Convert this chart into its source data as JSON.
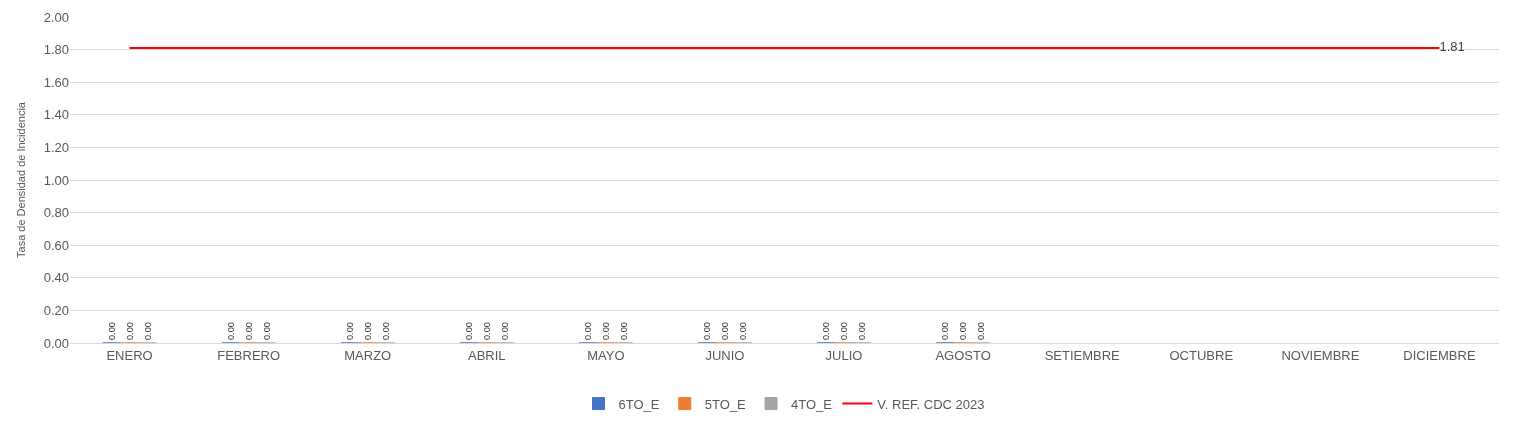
{
  "chart_data": {
    "type": "bar",
    "ylabel": "Tasa de Densidad de Incidencia",
    "categories": [
      "ENERO",
      "FEBRERO",
      "MARZO",
      "ABRIL",
      "MAYO",
      "JUNIO",
      "JULIO",
      "AGOSTO",
      "SETIEMBRE",
      "OCTUBRE",
      "NOVIEMBRE",
      "DICIEMBRE"
    ],
    "series": [
      {
        "name": "6TO_E",
        "color": "#4472c4",
        "values": [
          0,
          0,
          0,
          0,
          0,
          0,
          0,
          0,
          null,
          null,
          null,
          null
        ],
        "value_labels": [
          "0.00",
          "0.00",
          "0.00",
          "0.00",
          "0.00",
          "0.00",
          "0.00",
          "0.00",
          null,
          null,
          null,
          null
        ]
      },
      {
        "name": "5TO_E",
        "color": "#ed7d31",
        "values": [
          0,
          0,
          0,
          0,
          0,
          0,
          0,
          0,
          null,
          null,
          null,
          null
        ],
        "value_labels": [
          "0.00",
          "0.00",
          "0.00",
          "0.00",
          "0.00",
          "0.00",
          "0.00",
          "0.00",
          null,
          null,
          null,
          null
        ]
      },
      {
        "name": "4TO_E",
        "color": "#a5a5a5",
        "values": [
          0,
          0,
          0,
          0,
          0,
          0,
          0,
          0,
          null,
          null,
          null,
          null
        ],
        "value_labels": [
          "0.00",
          "0.00",
          "0.00",
          "0.00",
          "0.00",
          "0.00",
          "0.00",
          "0.00",
          null,
          null,
          null,
          null
        ]
      },
      {
        "name": "V. REF. CDC 2023",
        "type": "line",
        "color": "#ff0000",
        "values": [
          1.81,
          1.81,
          1.81,
          1.81,
          1.81,
          1.81,
          1.81,
          1.81,
          1.81,
          1.81,
          1.81,
          1.81
        ],
        "value_labels": [
          null,
          null,
          null,
          null,
          null,
          null,
          null,
          null,
          null,
          null,
          null,
          "1.81"
        ]
      }
    ],
    "ylim": [
      0,
      2
    ],
    "yticks": [
      {
        "value": 0,
        "label": "0.00"
      },
      {
        "value": 0.2,
        "label": "0.20"
      },
      {
        "value": 0.4,
        "label": "0.40"
      },
      {
        "value": 0.6,
        "label": "0.60"
      },
      {
        "value": 0.8,
        "label": "0.80"
      },
      {
        "value": 1,
        "label": "1.00"
      },
      {
        "value": 1.2,
        "label": "1.20"
      },
      {
        "value": 1.4,
        "label": "1.40"
      },
      {
        "value": 1.6,
        "label": "1.60"
      },
      {
        "value": 1.8,
        "label": "1.80"
      },
      {
        "value": 2,
        "label": "2.00"
      }
    ],
    "grid": "y",
    "legend": "bottom",
    "marker": "none"
  }
}
